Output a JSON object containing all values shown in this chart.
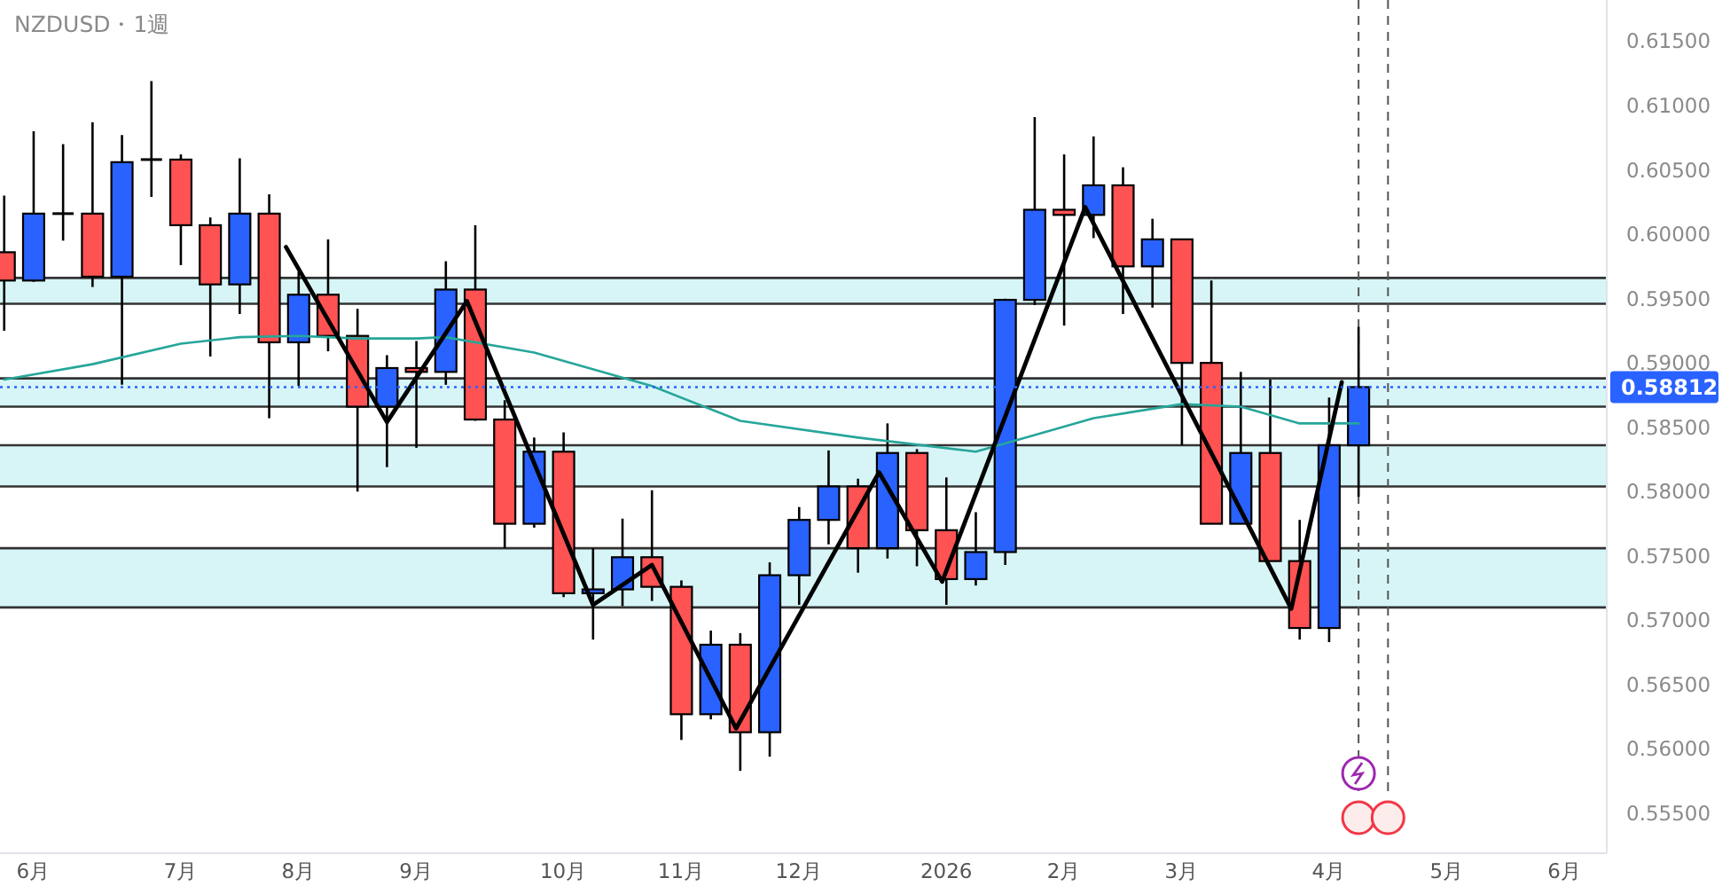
{
  "chart_data": {
    "type": "candlestick",
    "title": "NZDUSD・1週",
    "x": [
      "2025-05-26",
      "2025-06-02",
      "2025-06-09",
      "2025-06-16",
      "2025-06-23",
      "2025-06-30",
      "2025-07-07",
      "2025-07-14",
      "2025-07-21",
      "2025-07-28",
      "2025-08-04",
      "2025-08-11",
      "2025-08-18",
      "2025-08-25",
      "2025-09-01",
      "2025-09-08",
      "2025-09-15",
      "2025-09-22",
      "2025-09-29",
      "2025-10-06",
      "2025-10-13",
      "2025-10-20",
      "2025-10-27",
      "2025-11-03",
      "2025-11-10",
      "2025-11-17",
      "2025-11-24",
      "2025-12-01",
      "2025-12-08",
      "2025-12-15",
      "2025-12-22",
      "2025-12-29",
      "2026-01-05",
      "2026-01-12",
      "2026-01-19",
      "2026-01-26",
      "2026-02-02",
      "2026-02-09",
      "2026-02-16",
      "2026-02-23",
      "2026-03-02",
      "2026-03-09",
      "2026-03-16",
      "2026-03-23",
      "2026-03-30",
      "2026-04-06",
      "2026-04-13"
    ],
    "ohlc": [
      [
        0.5986,
        0.603,
        0.5925,
        0.5964
      ],
      [
        0.5964,
        0.608,
        0.5963,
        0.6016
      ],
      [
        0.6016,
        0.607,
        0.5995,
        0.6016
      ],
      [
        0.6016,
        0.6087,
        0.5959,
        0.5967
      ],
      [
        0.5967,
        0.6077,
        0.5883,
        0.6056
      ],
      [
        0.6058,
        0.6119,
        0.6029,
        0.6058
      ],
      [
        0.6058,
        0.6062,
        0.5976,
        0.6007
      ],
      [
        0.6007,
        0.6013,
        0.5905,
        0.5961
      ],
      [
        0.5961,
        0.6059,
        0.5938,
        0.6016
      ],
      [
        0.6016,
        0.6031,
        0.5857,
        0.5916
      ],
      [
        0.5916,
        0.5971,
        0.5882,
        0.5953
      ],
      [
        0.5953,
        0.5996,
        0.5909,
        0.5921
      ],
      [
        0.5921,
        0.5942,
        0.58,
        0.5866
      ],
      [
        0.5866,
        0.5906,
        0.5819,
        0.5896
      ],
      [
        0.5896,
        0.5917,
        0.5834,
        0.5893
      ],
      [
        0.5893,
        0.5979,
        0.5883,
        0.5957
      ],
      [
        0.5957,
        0.6007,
        0.5855,
        0.5856
      ],
      [
        0.5856,
        0.5871,
        0.5756,
        0.5775
      ],
      [
        0.5775,
        0.5842,
        0.5772,
        0.5831
      ],
      [
        0.5831,
        0.5846,
        0.5718,
        0.5721
      ],
      [
        0.5721,
        0.5756,
        0.5685,
        0.5724
      ],
      [
        0.5724,
        0.5779,
        0.5711,
        0.5749
      ],
      [
        0.5749,
        0.5801,
        0.5715,
        0.5726
      ],
      [
        0.5726,
        0.5731,
        0.5607,
        0.5627
      ],
      [
        0.5627,
        0.5692,
        0.5623,
        0.5681
      ],
      [
        0.5681,
        0.569,
        0.5583,
        0.5613
      ],
      [
        0.5613,
        0.5745,
        0.5594,
        0.5735
      ],
      [
        0.5735,
        0.5788,
        0.5712,
        0.5778
      ],
      [
        0.5778,
        0.5832,
        0.5759,
        0.5804
      ],
      [
        0.5804,
        0.581,
        0.5737,
        0.5756
      ],
      [
        0.5756,
        0.5853,
        0.5748,
        0.583
      ],
      [
        0.583,
        0.5833,
        0.5742,
        0.577
      ],
      [
        0.577,
        0.5811,
        0.5712,
        0.5732
      ],
      [
        0.5732,
        0.5784,
        0.5727,
        0.5753
      ],
      [
        0.5753,
        0.595,
        0.5743,
        0.5949
      ],
      [
        0.5949,
        0.6091,
        0.5945,
        0.6019
      ],
      [
        0.6019,
        0.6062,
        0.5929,
        0.6015
      ],
      [
        0.6015,
        0.6076,
        0.5997,
        0.6038
      ],
      [
        0.6038,
        0.6052,
        0.5938,
        0.5975
      ],
      [
        0.5975,
        0.6012,
        0.5943,
        0.5996
      ],
      [
        0.5996,
        0.5996,
        0.5836,
        0.59
      ],
      [
        0.59,
        0.5964,
        0.5775,
        0.5775
      ],
      [
        0.5775,
        0.5893,
        0.5775,
        0.583
      ],
      [
        0.583,
        0.5887,
        0.5746,
        0.5746
      ],
      [
        0.5746,
        0.5778,
        0.5685,
        0.5694
      ],
      [
        0.5694,
        0.5873,
        0.5683,
        0.5836
      ],
      [
        0.5836,
        0.5928,
        0.5796,
        0.58812
      ]
    ],
    "colors": [
      "#ff5252",
      "#2962ff",
      "#000000",
      "#ff5252",
      "#2962ff",
      "#000000",
      "#ff5252",
      "#ff5252",
      "#2962ff",
      "#ff5252",
      "#2962ff",
      "#ff5252",
      "#ff5252",
      "#2962ff",
      "#ff5252",
      "#2962ff",
      "#ff5252",
      "#ff5252",
      "#2962ff",
      "#ff5252",
      "#2962ff",
      "#2962ff",
      "#ff5252",
      "#ff5252",
      "#2962ff",
      "#ff5252",
      "#2962ff",
      "#2962ff",
      "#2962ff",
      "#ff5252",
      "#2962ff",
      "#ff5252",
      "#ff5252",
      "#2962ff",
      "#2962ff",
      "#2962ff",
      "#ff5252",
      "#2962ff",
      "#ff5252",
      "#2962ff",
      "#ff5252",
      "#ff5252",
      "#2962ff",
      "#ff5252",
      "#ff5252",
      "#2962ff",
      "#2962ff"
    ],
    "series": [
      {
        "type": "line",
        "color": "#26a69a",
        "x": [
          "2025-05-26",
          "2025-06-16",
          "2025-07-07",
          "2025-07-21",
          "2025-08-04",
          "2025-08-18",
          "2025-09-01",
          "2025-09-08",
          "2025-09-29",
          "2025-10-27",
          "2025-11-17",
          "2025-12-15",
          "2026-01-12",
          "2026-01-26",
          "2026-02-09",
          "2026-03-02",
          "2026-03-16",
          "2026-03-30",
          "2026-04-13"
        ],
        "values": [
          0.5887,
          0.5899,
          0.5915,
          0.592,
          0.5921,
          0.5919,
          0.5919,
          0.592,
          0.5908,
          0.5882,
          0.5855,
          0.5842,
          0.5831,
          0.5844,
          0.5857,
          0.5868,
          0.5866,
          0.5853,
          0.5853
        ]
      },
      {
        "type": "line",
        "color": "#000000",
        "x": [
          "2025-08-01",
          "2025-08-25",
          "2025-09-13",
          "2025-10-13",
          "2025-10-27",
          "2025-11-16",
          "2025-12-20",
          "2026-01-04",
          "2026-02-07",
          "2026-03-28",
          "2026-04-09"
        ],
        "values": [
          0.599,
          0.5854,
          0.5948,
          0.5712,
          0.5743,
          0.5616,
          0.5815,
          0.573,
          0.6021,
          0.5709,
          0.5885
        ]
      }
    ],
    "bands": [
      {
        "axis": "y",
        "from": 0.5946,
        "to": 0.5966,
        "color": "#d7f5f7"
      },
      {
        "axis": "y",
        "from": 0.5866,
        "to": 0.5888,
        "color": "#d7f5f7"
      },
      {
        "axis": "y",
        "from": 0.5804,
        "to": 0.5836,
        "color": "#d7f5f7"
      },
      {
        "axis": "y",
        "from": 0.571,
        "to": 0.5756,
        "color": "#d7f5f7"
      }
    ],
    "ref_lines": [
      {
        "axis": "y",
        "value": 0.58812,
        "label": "0.58812",
        "color": "#2962ff",
        "line_style": "dotted"
      },
      {
        "axis": "x",
        "value": "2026-04-13",
        "color": "#555555",
        "line_style": "dashed"
      },
      {
        "axis": "x",
        "value": "2026-04-20",
        "color": "#555555",
        "line_style": "dashed"
      }
    ],
    "xlim": [
      "2025-05-25",
      "2026-06-11"
    ],
    "xticks": [
      {
        "value": "2025-06-02",
        "label": "6月"
      },
      {
        "value": "2025-07-07",
        "label": "7月"
      },
      {
        "value": "2025-08-04",
        "label": "8月"
      },
      {
        "value": "2025-09-01",
        "label": "9月"
      },
      {
        "value": "2025-10-06",
        "label": "10月"
      },
      {
        "value": "2025-11-03",
        "label": "11月"
      },
      {
        "value": "2025-12-01",
        "label": "12月"
      },
      {
        "value": "2026-01-05",
        "label": "2026"
      },
      {
        "value": "2026-02-02",
        "label": "2月"
      },
      {
        "value": "2026-03-02",
        "label": "3月"
      },
      {
        "value": "2026-04-06",
        "label": "4月"
      },
      {
        "value": "2026-05-04",
        "label": "5月"
      },
      {
        "value": "2026-06-01",
        "label": "6月"
      }
    ],
    "ylim": [
      0.5519,
      0.6182
    ],
    "yticks": [
      {
        "value": 0.555,
        "label": "0.55500"
      },
      {
        "value": 0.56,
        "label": "0.56000"
      },
      {
        "value": 0.565,
        "label": "0.56500"
      },
      {
        "value": 0.57,
        "label": "0.57000"
      },
      {
        "value": 0.575,
        "label": "0.57500"
      },
      {
        "value": 0.58,
        "label": "0.58000"
      },
      {
        "value": 0.585,
        "label": "0.58500"
      },
      {
        "value": 0.59,
        "label": "0.59000"
      },
      {
        "value": 0.595,
        "label": "0.59500"
      },
      {
        "value": 0.6,
        "label": "0.60000"
      },
      {
        "value": 0.605,
        "label": "0.60500"
      },
      {
        "value": 0.61,
        "label": "0.61000"
      },
      {
        "value": 0.615,
        "label": "0.61500"
      }
    ]
  }
}
